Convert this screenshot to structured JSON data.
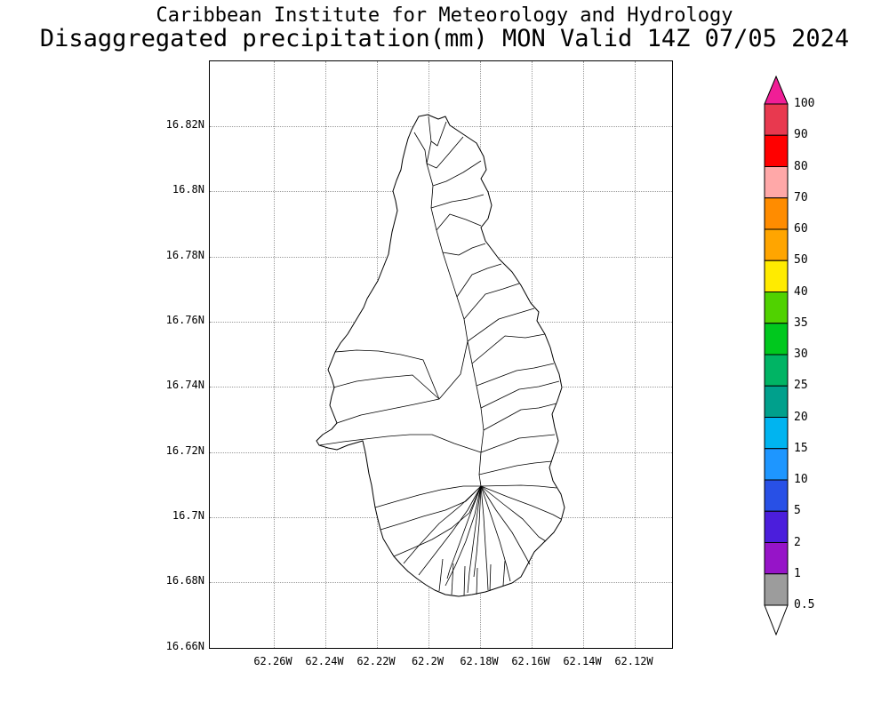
{
  "header": {
    "title_line1": "Caribbean Institute for Meteorology and Hydrology",
    "title_line2": "Disaggregated precipitation(mm) MON Valid 14Z 07/05 2024"
  },
  "map": {
    "lat_labels": [
      "16.82N",
      "16.8N",
      "16.78N",
      "16.76N",
      "16.74N",
      "16.72N",
      "16.7N",
      "16.68N",
      "16.66N"
    ],
    "lon_labels": [
      "62.26W",
      "62.24W",
      "62.22W",
      "62.2W",
      "62.18W",
      "62.16W",
      "62.14W",
      "62.12W"
    ]
  },
  "colorbar": {
    "boundary_labels": [
      "100",
      "90",
      "80",
      "70",
      "60",
      "50",
      "40",
      "35",
      "30",
      "25",
      "20",
      "15",
      "10",
      "5",
      "2",
      "1",
      "0.5"
    ],
    "segment_colors_top_to_bottom": [
      "#E8394F",
      "#FF0000",
      "#FFA8A8",
      "#FF8C00",
      "#FFA500",
      "#FFEB00",
      "#50D200",
      "#00C81E",
      "#00B464",
      "#00A08C",
      "#00B4F0",
      "#1E96FF",
      "#2850E6",
      "#4B1EDC",
      "#9614C8",
      "#9C9C9C"
    ],
    "above_max_arrow_color": "#F01E96",
    "below_min_arrow_color": "#FFFFFF",
    "outline_color": "#000000"
  }
}
